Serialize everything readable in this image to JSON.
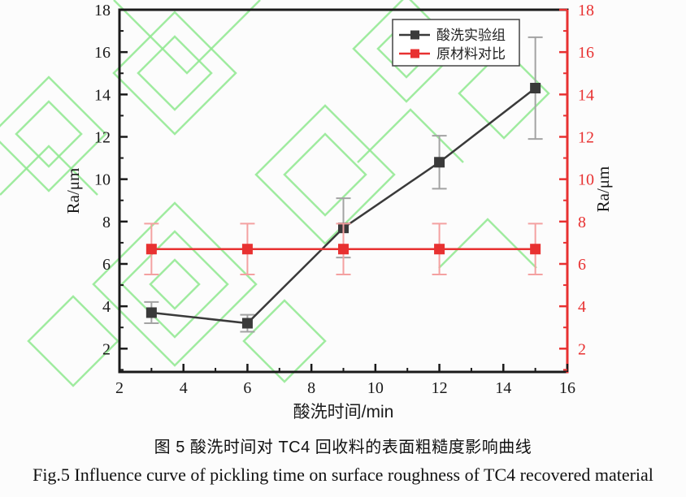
{
  "figure": {
    "watermark_color": "#8fe88f",
    "background_color": "#fcfcfc"
  },
  "chart_data": {
    "type": "line",
    "title": "",
    "xlabel": "酸洗时间/min",
    "ylabel_left": "Ra/μm",
    "ylabel_right": "Ra/μm",
    "xlim": [
      2,
      16
    ],
    "ylim": [
      0.9,
      18
    ],
    "x_major_ticks": [
      2,
      4,
      6,
      8,
      10,
      12,
      14,
      16
    ],
    "x_minor_ticks": [
      3,
      5,
      7,
      9,
      11,
      13,
      15
    ],
    "y_major_ticks": [
      2,
      4,
      6,
      8,
      10,
      12,
      14,
      16,
      18
    ],
    "y_minor_ticks": [
      1,
      3,
      5,
      7,
      9,
      11,
      13,
      15,
      17
    ],
    "x": [
      3,
      6,
      9,
      12,
      15
    ],
    "series": [
      {
        "name": "酸洗实验组",
        "color": "#3a3a3a",
        "errorbar_color": "#a3a3a3",
        "marker": "square",
        "values": [
          3.7,
          3.2,
          7.7,
          10.8,
          14.3
        ],
        "errors": [
          0.5,
          0.4,
          1.4,
          1.25,
          2.4
        ]
      },
      {
        "name": "原材料对比",
        "color": "#e83131",
        "errorbar_color": "#f4a1a1",
        "marker": "square",
        "values": [
          6.7,
          6.7,
          6.7,
          6.7,
          6.7
        ],
        "errors": [
          1.2,
          1.2,
          1.2,
          1.2,
          1.2
        ]
      }
    ],
    "legend_position": "top-right",
    "axes_colors": {
      "left": "#1a1a1a",
      "bottom": "#1a1a1a",
      "top": "#1a1a1a",
      "right": "#e83131"
    },
    "grid": false
  },
  "captions": {
    "zh": "图 5 酸洗时间对 TC4 回收料的表面粗糙度影响曲线",
    "en": "Fig.5 Influence curve of pickling time on surface roughness of TC4 recovered material"
  }
}
